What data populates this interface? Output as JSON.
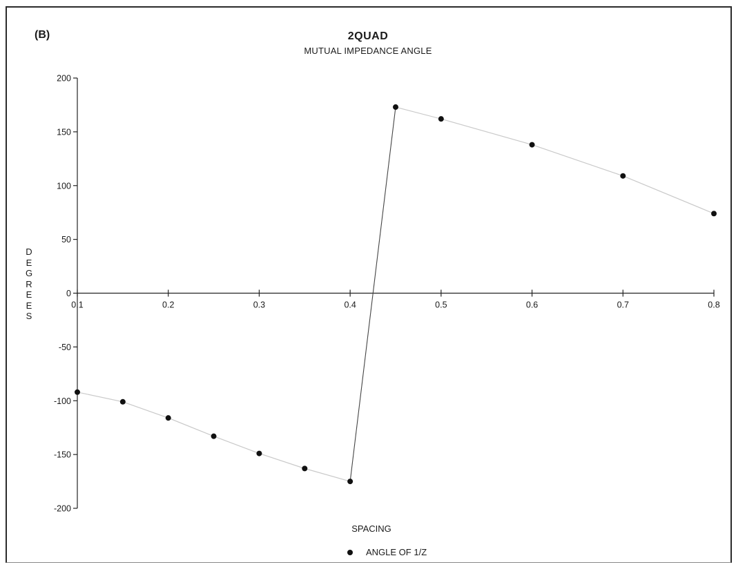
{
  "panel_label": "(B)",
  "chart_data": {
    "type": "line",
    "title": "2QUAD",
    "subtitle": "MUTUAL IMPEDANCE ANGLE",
    "xlabel": "SPACING",
    "ylabel": "DEGREES",
    "xlim": [
      0.1,
      0.8
    ],
    "ylim": [
      -200,
      200
    ],
    "x_ticks": [
      0.1,
      0.2,
      0.3,
      0.4,
      0.5,
      0.6,
      0.7,
      0.8
    ],
    "x_tick_labels": [
      "0.1",
      "0.2",
      "0.3",
      "0.4",
      "0.5",
      "0.6",
      "0.7",
      "0.8"
    ],
    "y_ticks": [
      200,
      150,
      100,
      50,
      0,
      -50,
      -100,
      -150,
      -200
    ],
    "y_tick_labels": [
      "200",
      "150",
      "100",
      "50",
      "0",
      "-50",
      "-100",
      "-150",
      "-200"
    ],
    "grid": false,
    "legend_position": "bottom-center",
    "series": [
      {
        "name": "ANGLE OF 1/Z",
        "color": "#111111",
        "x": [
          0.1,
          0.15,
          0.2,
          0.25,
          0.3,
          0.35,
          0.4,
          0.45,
          0.5,
          0.6,
          0.7,
          0.8
        ],
        "y": [
          -92,
          -101,
          -116,
          -133,
          -149,
          -163,
          -175,
          173,
          162,
          138,
          109,
          74
        ]
      }
    ]
  }
}
